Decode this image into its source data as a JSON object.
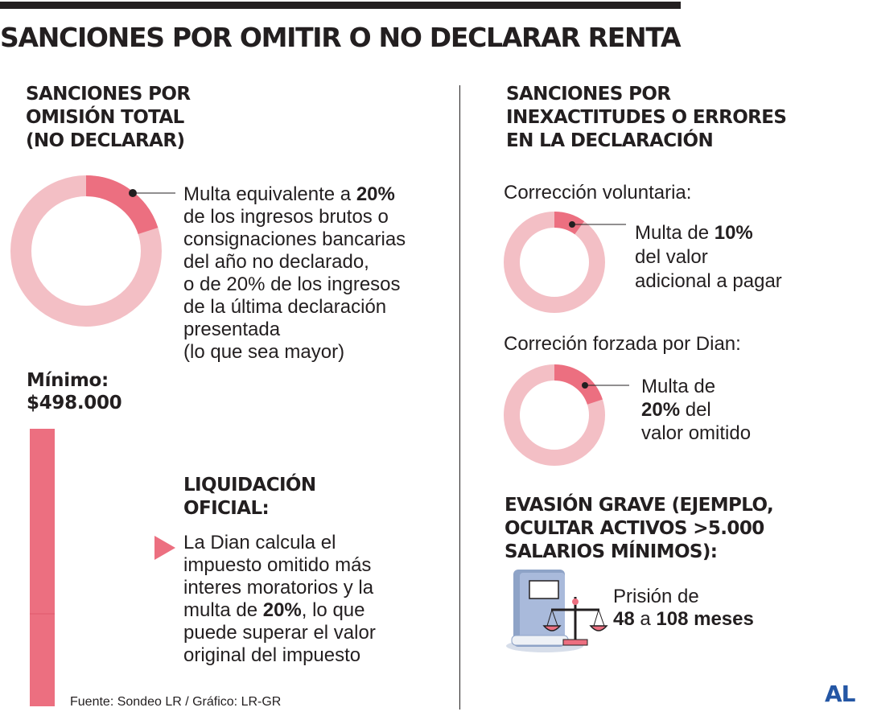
{
  "title": "SANCIONES POR OMITIR O NO DECLARAR RENTA",
  "left": {
    "omission_title": [
      "SANCIONES POR",
      "OMISIÓN TOTAL",
      "(NO DECLARAR)"
    ],
    "fine_text": {
      "line1_pre": "Multa equivalente a ",
      "line1_bold": "20%",
      "lines": [
        "de los ingresos brutos o",
        "consignaciones bancarias",
        "del año no declarado,",
        "o de 20% de los ingresos",
        "de la última declaración",
        "presentada",
        "(lo que sea mayor)"
      ]
    },
    "donut_percent": 20,
    "minimum_label": "Mínimo:",
    "minimum_value": "$498.000",
    "liquidation_title": [
      "LIQUIDACIÓN",
      "OFICIAL:"
    ],
    "liquidation_text": {
      "lines_before": [
        "La Dian calcula el",
        "impuesto omitido más",
        "interes moratorios y la"
      ],
      "line4_pre": "multa de ",
      "line4_bold": "20%",
      "line4_post": ", lo que",
      "lines_after": [
        "puede superar el valor",
        "original del impuesto"
      ]
    }
  },
  "right": {
    "errors_title": [
      "SANCIONES POR",
      "INEXACTITUDES O ERRORES",
      "EN LA DECLARACIÓN"
    ],
    "voluntary": {
      "label": "Corrección voluntaria:",
      "line1_pre": "Multa de ",
      "line1_bold": "10%",
      "lines": [
        "del valor",
        "adicional a pagar"
      ],
      "percent": 10
    },
    "forced": {
      "label": "Correción forzada por Dian:",
      "line1": "Multa de",
      "line2_bold": "20%",
      "line2_post": " del",
      "line3": "valor omitido",
      "percent": 20
    },
    "evasion_title": [
      "EVASIÓN GRAVE (EJEMPLO,",
      "OCULTAR ACTIVOS >5.000",
      "SALARIOS MÍNIMOS):"
    ],
    "prison": {
      "line1": "Prisión de",
      "min_bold": "48",
      "mid": " a ",
      "max_bold": "108 meses"
    }
  },
  "source": "Fuente: Sondeo LR / Gráfico: LR-GR",
  "logo": "AL",
  "colors": {
    "accent": "#ec6f80",
    "accent_light": "#f3bfc5",
    "text": "#231f20",
    "icon_blue": "#8ea3c7",
    "logo_blue": "#2456a4"
  }
}
